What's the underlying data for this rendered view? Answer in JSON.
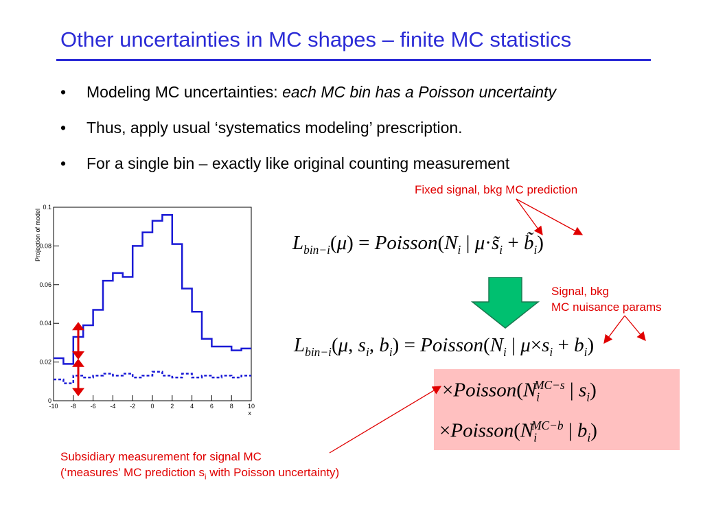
{
  "slide": {
    "title": "Other uncertainties in MC shapes – finite MC statistics",
    "bullet_marker": "•",
    "bullets": [
      {
        "text": "Modeling MC uncertainties: ",
        "italic": "each MC bin has a Poisson uncertainty"
      },
      {
        "text": "Thus, apply usual ‘systematics modeling’ prescription.",
        "italic": ""
      },
      {
        "text": "For a single bin – exactly like original counting measurement",
        "italic": ""
      }
    ]
  },
  "annotations": {
    "fixed": "Fixed signal, bkg MC prediction",
    "nuisance_line1": "Signal, bkg",
    "nuisance_line2": "MC nuisance params",
    "subsidiary_line1": "Subsidiary measurement for signal MC",
    "subsidiary_line2_a": "(‘measures’ MC prediction s",
    "subsidiary_line2_sub": "i",
    "subsidiary_line2_b": " with Poisson uncertainty)"
  },
  "equations": {
    "eq1": "L_bin-i(μ) = Poisson(N_i | μ·s̃_i + b̃_i)",
    "eq2": "L_bin-i(μ, s_i, b_i) = Poisson(N_i | μ×s_i + b_i)",
    "eq3": "×Poisson(N_i^MC-s | s_i)",
    "eq4": "×Poisson(N_i^MC-b | b_i)"
  },
  "colors": {
    "title": "#2b2bd6",
    "annotation": "#e00000",
    "down_arrow": "#00c070",
    "box": "#ffc0c0",
    "histogram": "#1a1ad6",
    "error_arrow": "#e00000"
  },
  "icons": [
    "down-arrow-icon",
    "double-arrow-icon"
  ],
  "chart_data": {
    "type": "line",
    "title": "",
    "xlabel": "x",
    "ylabel": "Projection of model",
    "xlim": [
      -10,
      10
    ],
    "ylim": [
      0,
      0.1
    ],
    "xticks": [
      "-10",
      "-8",
      "-6",
      "-4",
      "-2",
      "0",
      "2",
      "4",
      "6",
      "8",
      "10"
    ],
    "yticks": [
      "0",
      "0.02",
      "0.04",
      "0.06",
      "0.08",
      "0.1"
    ],
    "bin_edges": [
      -10,
      -9,
      -8,
      -7,
      -6,
      -5,
      -4,
      -3,
      -2,
      -1,
      0,
      1,
      2,
      3,
      4,
      5,
      6,
      7,
      8,
      9,
      10
    ],
    "series": [
      {
        "style": "solid",
        "values": [
          0.022,
          0.019,
          0.033,
          0.039,
          0.047,
          0.062,
          0.066,
          0.064,
          0.08,
          0.087,
          0.093,
          0.096,
          0.081,
          0.058,
          0.046,
          0.032,
          0.028,
          0.028,
          0.026,
          0.027
        ]
      },
      {
        "style": "dashed",
        "values": [
          0.011,
          0.009,
          0.013,
          0.012,
          0.013,
          0.014,
          0.013,
          0.014,
          0.012,
          0.013,
          0.015,
          0.013,
          0.012,
          0.014,
          0.012,
          0.013,
          0.012,
          0.013,
          0.012,
          0.013
        ]
      }
    ],
    "grid": false
  }
}
